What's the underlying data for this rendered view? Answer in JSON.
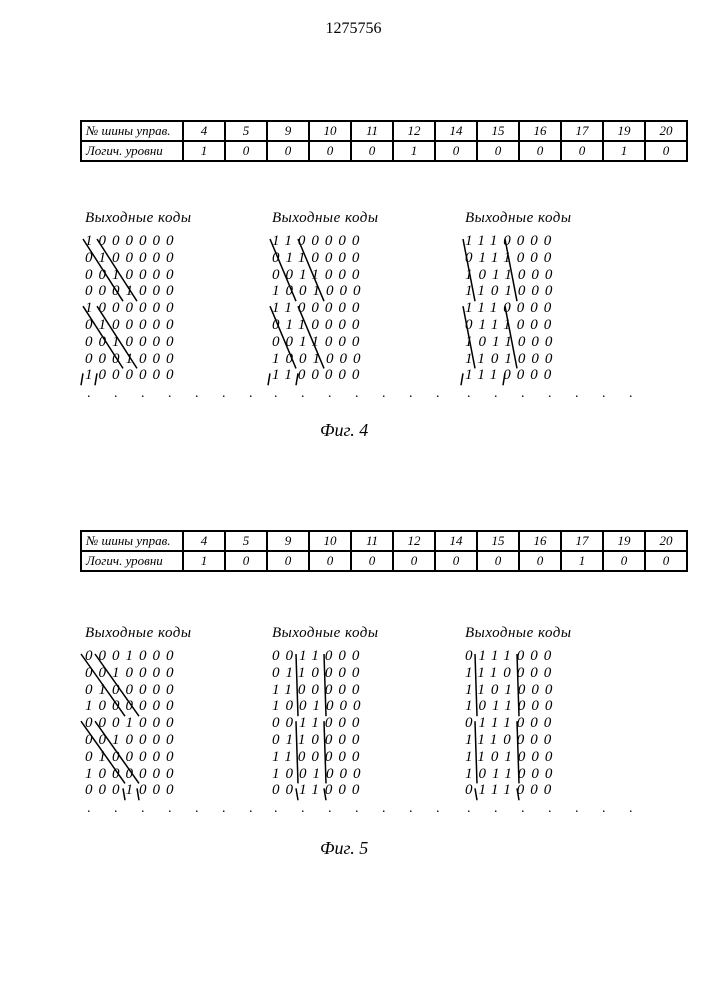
{
  "page_number": "1275756",
  "table1": {
    "row1_label": "№ шины управ.",
    "row2_label": "Логич. уровни",
    "cols": [
      "4",
      "5",
      "9",
      "10",
      "11",
      "12",
      "14",
      "15",
      "16",
      "17",
      "19",
      "20"
    ],
    "vals": [
      "1",
      "0",
      "0",
      "0",
      "0",
      "1",
      "0",
      "0",
      "0",
      "0",
      "1",
      "0"
    ]
  },
  "table2": {
    "row1_label": "№ шины управ.",
    "row2_label": "Логич. уровни",
    "cols": [
      "4",
      "5",
      "9",
      "10",
      "11",
      "12",
      "14",
      "15",
      "16",
      "17",
      "19",
      "20"
    ],
    "vals": [
      "1",
      "0",
      "0",
      "0",
      "0",
      "0",
      "0",
      "0",
      "0",
      "1",
      "0",
      "0"
    ]
  },
  "fig4_caption": "Фиг. 4",
  "fig5_caption": "Фиг. 5",
  "block_title": "Выходные коды",
  "fig4": {
    "b1": [
      "1000000",
      "0100000",
      "0010000",
      "0001000",
      "1000000",
      "0100000",
      "0010000",
      "0001000",
      "1000000"
    ],
    "b2": [
      "1100000",
      "0110000",
      "0011000",
      "1001000",
      "1100000",
      "0110000",
      "0011000",
      "1001000",
      "1100000"
    ],
    "b3": [
      "1110000",
      "0111000",
      "1011000",
      "1101000",
      "1110000",
      "0111000",
      "1011000",
      "1101000",
      "1110000"
    ]
  },
  "fig5": {
    "b1": [
      "0001000",
      "0010000",
      "0100000",
      "1000000",
      "0001000",
      "0010000",
      "0100000",
      "1000000",
      "0001000"
    ],
    "b2": [
      "0011000",
      "0110000",
      "1100000",
      "1001000",
      "0011000",
      "0110000",
      "1100000",
      "1001000",
      "0011000"
    ],
    "b3": [
      "0111000",
      "1110000",
      "1101000",
      "1011000",
      "0111000",
      "1110000",
      "1101000",
      "1011000",
      "0111000"
    ]
  },
  "dots": ". . . . . . .",
  "line_style": {
    "stroke": "#000000",
    "stroke_width": 1.5
  }
}
